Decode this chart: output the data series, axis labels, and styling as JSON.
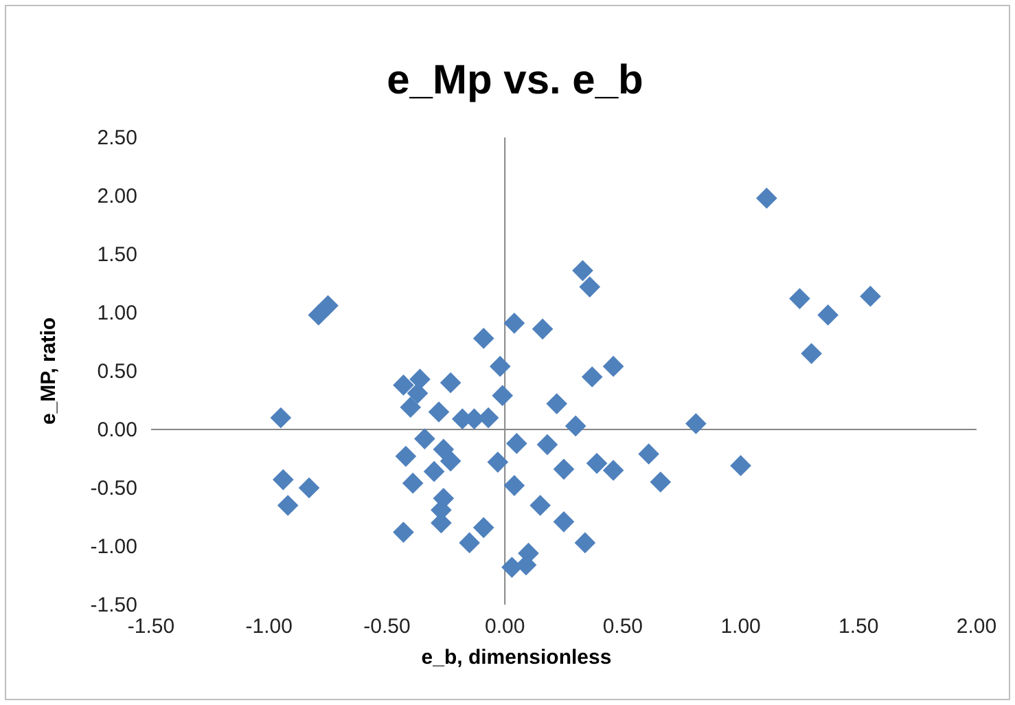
{
  "chart_data": {
    "type": "scatter",
    "title": "e_Mp vs. e_b",
    "xlabel": "e_b, dimensionless",
    "ylabel": "e_MP, ratio",
    "xlim": [
      -1.5,
      2.0
    ],
    "xticks": [
      {
        "value": -1.5,
        "label": "-1.50"
      },
      {
        "value": -1.0,
        "label": "-1.00"
      },
      {
        "value": -0.5,
        "label": "-0.50"
      },
      {
        "value": 0,
        "label": "0.00"
      },
      {
        "value": 0.5,
        "label": "0.50"
      },
      {
        "value": 1.0,
        "label": "1.00"
      },
      {
        "value": 1.5,
        "label": "1.50"
      },
      {
        "value": 2.0,
        "label": "2.00"
      }
    ],
    "ylim": [
      -1.5,
      2.5
    ],
    "yticks": [
      {
        "value": -1.5,
        "label": "-1.50"
      },
      {
        "value": -1.0,
        "label": "-1.00"
      },
      {
        "value": -0.5,
        "label": "-0.50"
      },
      {
        "value": 0,
        "label": "0.00"
      },
      {
        "value": 0.5,
        "label": "0.50"
      },
      {
        "value": 1.0,
        "label": "1.00"
      },
      {
        "value": 1.5,
        "label": "1.50"
      },
      {
        "value": 2.0,
        "label": "2.00"
      },
      {
        "value": 2.5,
        "label": "2.50"
      }
    ],
    "marker": "diamond",
    "series": [
      {
        "color": "#4f81bd",
        "x": [
          -0.95,
          -0.79,
          -0.75,
          -0.94,
          -0.83,
          -0.92,
          -0.43,
          -0.43,
          -0.36,
          -0.37,
          -0.4,
          -0.23,
          -0.28,
          -0.18,
          -0.13,
          -0.07,
          -0.09,
          -0.02,
          -0.01,
          0.04,
          0.16,
          0.22,
          -0.34,
          -0.26,
          -0.23,
          -0.42,
          -0.39,
          -0.3,
          -0.26,
          -0.27,
          -0.27,
          -0.09,
          -0.15,
          -0.03,
          0.05,
          0.04,
          0.03,
          0.1,
          0.09,
          0.18,
          0.15,
          1.11,
          0.33,
          0.36,
          1.25,
          1.37,
          1.55,
          1.3,
          0.37,
          0.46,
          0.3,
          0.81,
          0.25,
          0.39,
          0.46,
          0.61,
          0.66,
          1.0,
          0.25,
          0.34
        ],
        "values": [
          0.1,
          0.98,
          1.06,
          -0.43,
          -0.5,
          -0.65,
          -0.88,
          0.38,
          0.43,
          0.31,
          0.19,
          0.4,
          0.15,
          0.09,
          0.09,
          0.1,
          0.78,
          0.54,
          0.29,
          0.91,
          0.86,
          0.22,
          -0.08,
          -0.17,
          -0.27,
          -0.23,
          -0.46,
          -0.36,
          -0.59,
          -0.69,
          -0.8,
          -0.84,
          -0.97,
          -0.28,
          -0.12,
          -0.48,
          -1.18,
          -1.06,
          -1.16,
          -0.13,
          -0.65,
          1.98,
          1.36,
          1.22,
          1.12,
          0.98,
          1.14,
          0.65,
          0.45,
          0.54,
          0.03,
          0.05,
          -0.34,
          -0.29,
          -0.35,
          -0.21,
          -0.45,
          -0.31,
          -0.79,
          -0.97
        ]
      }
    ]
  }
}
